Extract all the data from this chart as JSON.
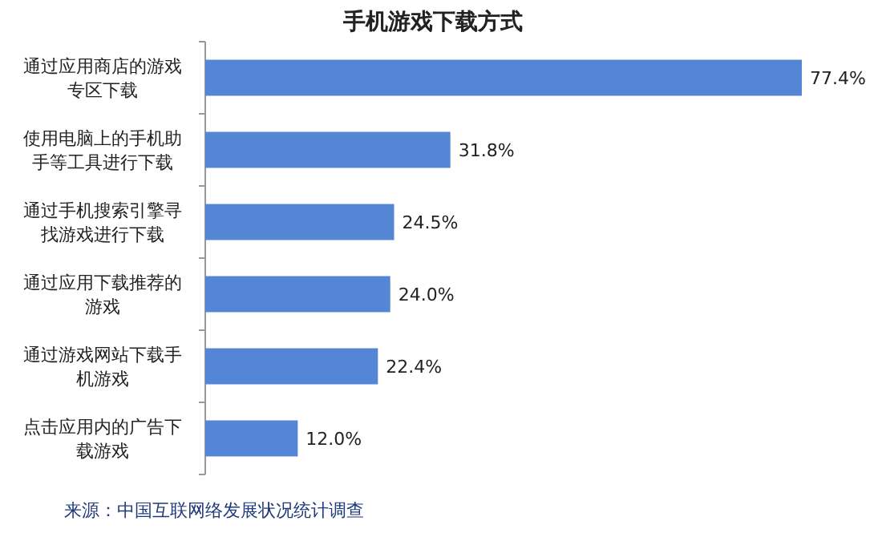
{
  "chart_data": {
    "type": "bar",
    "orientation": "horizontal",
    "title": "手机游戏下载方式",
    "categories": [
      "通过应用商店的游戏专区下载",
      "使用电脑上的手机助手等工具进行下载",
      "通过手机搜索引擎寻找游戏进行下载",
      "通过应用下载推荐的游戏",
      "通过游戏网站下载手机游戏",
      "点击应用内的广告下载游戏"
    ],
    "values": [
      77.4,
      31.8,
      24.5,
      24.0,
      22.4,
      12.0
    ],
    "value_labels": [
      "77.4%",
      "31.8%",
      "24.5%",
      "24.0%",
      "22.4%",
      "12.0%"
    ],
    "color": "#5585d5",
    "annotations": [
      "来源：中国互联网络发展状况统计调查"
    ]
  }
}
